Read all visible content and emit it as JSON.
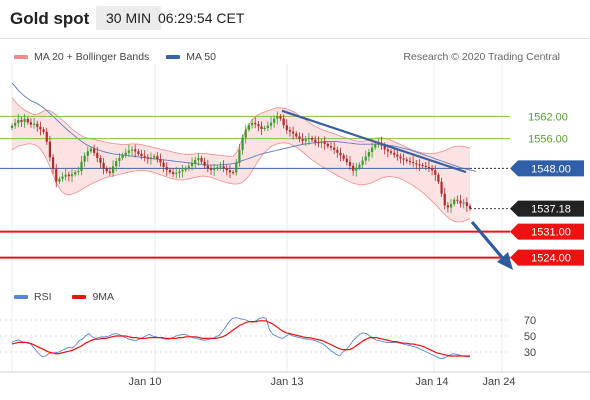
{
  "header": {
    "instrument": "Gold spot",
    "timeframe": "30 MIN",
    "time": "06:29:54 CET"
  },
  "legend": {
    "bollinger": "MA 20 + Bollinger Bands",
    "ma50": "MA 50",
    "copyright": "Research © 2020 Trading Central"
  },
  "rsi_legend": {
    "rsi": "RSI",
    "ma9": "9MA"
  },
  "colors": {
    "bollinger": "#f28c8c",
    "ma50": "#3a62a8",
    "support_red": "#ee1111",
    "green_level": "#7dc242",
    "current_price": "#222222",
    "rsi": "#5a86d6",
    "ma9": "#ee1111"
  },
  "chart_data": [
    {
      "type": "candlestick",
      "title": "Gold spot",
      "x_ticks": [
        "Jan 10",
        "Jan 13",
        "Jan 14",
        "Jan 24"
      ],
      "y_range": [
        1518,
        1575
      ],
      "levels": [
        {
          "value": 1562.0,
          "label": "1562.00",
          "color": "#7dc242"
        },
        {
          "value": 1556.0,
          "label": "1556.00",
          "color": "#7dc242"
        },
        {
          "value": 1548.0,
          "label": "1548.00",
          "color": "#3a62a8"
        },
        {
          "value": 1537.18,
          "label": "1537.18",
          "color": "#222222"
        },
        {
          "value": 1531.0,
          "label": "1531.00",
          "color": "#ee1111"
        },
        {
          "value": 1524.0,
          "label": "1524.00",
          "color": "#ee1111"
        }
      ],
      "close_series": [
        1559.5,
        1560.2,
        1561.0,
        1560.5,
        1561.3,
        1560.4,
        1559.8,
        1560.0,
        1559.2,
        1558.5,
        1557.8,
        1555.2,
        1551.0,
        1547.8,
        1544.5,
        1545.2,
        1545.8,
        1546.3,
        1545.9,
        1546.4,
        1547.0,
        1547.3,
        1549.8,
        1551.4,
        1552.6,
        1553.3,
        1552.2,
        1550.8,
        1549.5,
        1548.0,
        1547.2,
        1546.8,
        1548.6,
        1550.0,
        1550.8,
        1551.6,
        1552.2,
        1552.8,
        1553.1,
        1552.6,
        1551.9,
        1551.3,
        1551.0,
        1550.6,
        1550.9,
        1551.3,
        1550.4,
        1549.6,
        1548.4,
        1547.6,
        1547.0,
        1546.5,
        1546.8,
        1547.2,
        1547.6,
        1548.1,
        1548.6,
        1549.4,
        1550.3,
        1550.8,
        1549.8,
        1548.7,
        1548.1,
        1547.6,
        1547.9,
        1548.3,
        1548.6,
        1548.1,
        1547.5,
        1547.0,
        1546.9,
        1549.5,
        1553.0,
        1556.3,
        1558.4,
        1559.6,
        1560.2,
        1559.9,
        1559.3,
        1558.6,
        1558.9,
        1559.5,
        1560.3,
        1561.4,
        1562.0,
        1561.4,
        1559.6,
        1558.3,
        1557.9,
        1557.4,
        1556.6,
        1555.9,
        1555.4,
        1555.9,
        1556.2,
        1555.7,
        1555.0,
        1554.8,
        1555.2,
        1554.6,
        1554.0,
        1553.6,
        1553.0,
        1552.2,
        1551.5,
        1550.6,
        1549.7,
        1548.7,
        1547.4,
        1548.2,
        1549.0,
        1550.1,
        1551.2,
        1552.4,
        1553.6,
        1554.4,
        1554.9,
        1554.1,
        1553.1,
        1552.6,
        1552.2,
        1551.7,
        1551.2,
        1550.7,
        1550.4,
        1550.0,
        1549.7,
        1549.4,
        1549.1,
        1548.9,
        1548.7,
        1548.4,
        1548.1,
        1547.5,
        1546.3,
        1544.4,
        1541.2,
        1538.1,
        1537.5,
        1538.4,
        1539.6,
        1539.3,
        1538.6,
        1538.9,
        1537.9,
        1537.18
      ],
      "bollinger_upper": [
        1567,
        1566,
        1565,
        1564.3,
        1563.7,
        1563.2,
        1562.8,
        1562.5,
        1562.6,
        1563.0,
        1563.4,
        1563.7,
        1563.5,
        1563.0,
        1562.4,
        1561.8,
        1561.0,
        1560.2,
        1559.4,
        1558.6,
        1557.9,
        1557.3,
        1556.8,
        1556.4,
        1556.1,
        1555.9,
        1555.8,
        1555.6,
        1555.4,
        1555.2,
        1555.0,
        1554.8,
        1554.7,
        1554.6,
        1554.5,
        1554.4,
        1554.4,
        1554.5,
        1554.6,
        1554.6,
        1554.5,
        1554.4,
        1554.2,
        1554.0,
        1553.8,
        1553.6,
        1553.4,
        1553.2,
        1553.0,
        1552.8,
        1552.6,
        1552.4,
        1552.2,
        1552.0,
        1551.9,
        1551.8,
        1551.8,
        1551.8,
        1551.9,
        1552.0,
        1552.0,
        1552.0,
        1551.9,
        1551.8,
        1551.7,
        1551.6,
        1551.5,
        1551.4,
        1551.3,
        1551.2,
        1551.3,
        1552.2,
        1554.0,
        1556.2,
        1558.2,
        1559.8,
        1561.0,
        1561.9,
        1562.5,
        1562.9,
        1563.2,
        1563.5,
        1563.8,
        1564.1,
        1564.3,
        1564.3,
        1564.2,
        1564.0,
        1563.7,
        1563.3,
        1562.8,
        1562.2,
        1561.6,
        1561.0,
        1560.4,
        1559.8,
        1559.3,
        1558.9,
        1558.5,
        1558.2,
        1557.9,
        1557.6,
        1557.3,
        1557.0,
        1556.7,
        1556.4,
        1556.1,
        1555.8,
        1555.6,
        1555.4,
        1555.3,
        1555.3,
        1555.4,
        1555.6,
        1555.9,
        1556.1,
        1556.2,
        1556.2,
        1556.1,
        1555.9,
        1555.6,
        1555.2,
        1554.8,
        1554.4,
        1554.0,
        1553.6,
        1553.2,
        1552.9,
        1552.6,
        1552.4,
        1552.2,
        1552.1,
        1552.0,
        1552.0,
        1552.1,
        1552.3,
        1552.5,
        1552.8,
        1553.2,
        1553.6,
        1553.9,
        1554.0,
        1554.0,
        1553.9,
        1553.7,
        1553.4
      ],
      "bollinger_lower": [
        1553,
        1553.5,
        1554,
        1554.2,
        1554.4,
        1554.6,
        1554.6,
        1554.4,
        1554.0,
        1553.2,
        1552.0,
        1550.4,
        1548.4,
        1546.2,
        1544.2,
        1542.6,
        1541.6,
        1541.0,
        1540.9,
        1541.1,
        1541.4,
        1541.8,
        1542.3,
        1542.8,
        1543.3,
        1543.8,
        1544.2,
        1544.6,
        1545.0,
        1545.3,
        1545.6,
        1545.8,
        1546.0,
        1546.2,
        1546.4,
        1546.6,
        1546.8,
        1547.0,
        1547.2,
        1547.3,
        1547.4,
        1547.5,
        1547.4,
        1547.3,
        1547.1,
        1546.9,
        1546.6,
        1546.3,
        1546.0,
        1545.7,
        1545.4,
        1545.2,
        1545.0,
        1544.9,
        1544.9,
        1545.0,
        1545.2,
        1545.4,
        1545.6,
        1545.8,
        1545.9,
        1545.9,
        1545.8,
        1545.6,
        1545.3,
        1545.0,
        1544.7,
        1544.4,
        1544.2,
        1544.0,
        1543.8,
        1543.8,
        1543.9,
        1544.3,
        1545.0,
        1546.0,
        1547.3,
        1548.7,
        1550.1,
        1551.3,
        1552.3,
        1553.1,
        1553.8,
        1554.3,
        1554.6,
        1554.8,
        1554.9,
        1554.8,
        1554.6,
        1554.2,
        1553.7,
        1553.1,
        1552.4,
        1551.7,
        1551.0,
        1550.3,
        1549.7,
        1549.1,
        1548.6,
        1548.1,
        1547.6,
        1547.1,
        1546.6,
        1546.1,
        1545.6,
        1545.2,
        1544.8,
        1544.4,
        1544.0,
        1543.8,
        1543.6,
        1543.6,
        1543.7,
        1543.9,
        1544.2,
        1544.6,
        1545.0,
        1545.4,
        1545.6,
        1545.8,
        1545.8,
        1545.7,
        1545.5,
        1545.2,
        1544.8,
        1544.4,
        1543.9,
        1543.4,
        1542.8,
        1542.2,
        1541.5,
        1540.8,
        1540.0,
        1539.2,
        1538.3,
        1537.4,
        1536.5,
        1535.6,
        1534.8,
        1534.2,
        1533.8,
        1533.6,
        1533.6,
        1533.8,
        1534.1,
        1534.5
      ],
      "ma50_series": [
        1571,
        1570,
        1569,
        1568.2,
        1567.4,
        1566.8,
        1566.2,
        1565.8,
        1565.4,
        1564.9,
        1564.3,
        1563.6,
        1562.8,
        1562.0,
        1561.2,
        1560.4,
        1559.6,
        1558.8,
        1558.0,
        1557.3,
        1556.6,
        1555.9,
        1555.3,
        1554.7,
        1554.2,
        1553.8,
        1553.4,
        1553.1,
        1552.8,
        1552.5,
        1552.3,
        1552.1,
        1551.9,
        1551.8,
        1551.7,
        1551.6,
        1551.5,
        1551.4,
        1551.3,
        1551.2,
        1551.1,
        1551.0,
        1550.9,
        1550.8,
        1550.7,
        1550.6,
        1550.5,
        1550.4,
        1550.3,
        1550.2,
        1550.1,
        1550.0,
        1549.9,
        1549.8,
        1549.7,
        1549.6,
        1549.5,
        1549.4,
        1549.3,
        1549.2,
        1549.1,
        1549.0,
        1548.9,
        1548.9,
        1548.9,
        1548.9,
        1549.0,
        1549.0,
        1549.1,
        1549.2,
        1549.3,
        1549.5,
        1549.8,
        1550.1,
        1550.4,
        1550.7,
        1551.0,
        1551.3,
        1551.6,
        1551.9,
        1552.1,
        1552.3,
        1552.5,
        1552.7,
        1552.9,
        1553.1,
        1553.3,
        1553.5,
        1553.7,
        1553.9,
        1554.1,
        1554.3,
        1554.5,
        1554.6,
        1554.7,
        1554.8,
        1554.9,
        1555.0,
        1555.1,
        1555.2,
        1555.2,
        1555.2,
        1555.2,
        1555.2,
        1555.1,
        1555.0,
        1554.9,
        1554.8,
        1554.7,
        1554.6,
        1554.5,
        1554.5,
        1554.5,
        1554.5,
        1554.5,
        1554.5,
        1554.5,
        1554.4,
        1554.3,
        1554.2,
        1554.1,
        1554.0,
        1553.8,
        1553.6,
        1553.4,
        1553.2,
        1553.0,
        1552.7,
        1552.4,
        1552.1,
        1551.8,
        1551.5,
        1551.2,
        1550.9,
        1550.6,
        1550.3,
        1550.0,
        1549.7,
        1549.4,
        1549.1,
        1548.8,
        1548.5,
        1548.2,
        1548.0,
        1547.8,
        1547.6,
        1547.4,
        1547.2
      ],
      "trendline": {
        "from": 1563.5,
        "to": 1547.0
      }
    },
    {
      "type": "line",
      "title": "RSI",
      "y_ticks": [
        30,
        50,
        70
      ],
      "y_range": [
        10,
        85
      ],
      "series": [
        {
          "name": "RSI",
          "values": [
            42,
            44,
            45,
            43,
            42,
            42,
            38,
            33,
            28,
            24,
            25,
            28,
            29,
            29,
            30,
            32,
            34,
            36,
            35,
            38,
            44,
            46,
            50,
            53,
            49,
            47,
            48,
            49,
            49,
            50,
            52,
            53,
            52,
            50,
            48,
            46,
            45,
            44,
            46,
            48,
            50,
            52,
            50,
            49,
            48,
            47,
            46,
            46,
            48,
            50,
            51,
            52,
            52,
            50,
            48,
            47,
            46,
            45,
            45,
            46,
            47,
            49,
            51,
            56,
            62,
            68,
            72,
            73,
            72,
            71,
            70,
            68,
            67,
            69,
            72,
            73,
            72,
            58,
            52,
            50,
            48,
            47,
            50,
            52,
            50,
            49,
            48,
            47,
            46,
            46,
            45,
            44,
            42,
            40,
            37,
            33,
            30,
            27,
            25,
            30,
            33,
            38,
            44,
            48,
            52,
            54,
            53,
            50,
            47,
            45,
            44,
            43,
            42,
            42,
            42,
            42,
            41,
            40,
            39,
            38,
            37,
            36,
            34,
            32,
            30,
            28,
            26,
            24,
            22,
            22,
            24,
            26,
            28,
            27,
            26,
            25,
            24,
            24
          ]
        },
        {
          "name": "9MA",
          "values": [
            40,
            41,
            42,
            42,
            42,
            41,
            40,
            38,
            36,
            34,
            32,
            30,
            29,
            28,
            28,
            29,
            30,
            31,
            32,
            34,
            36,
            38,
            41,
            43,
            45,
            46,
            46,
            47,
            47,
            48,
            49,
            50,
            50,
            50,
            50,
            49,
            48,
            48,
            47,
            47,
            47,
            48,
            48,
            48,
            48,
            48,
            47,
            47,
            47,
            47,
            48,
            48,
            49,
            49,
            49,
            49,
            48,
            47,
            47,
            47,
            47,
            47,
            48,
            49,
            51,
            54,
            57,
            60,
            63,
            65,
            67,
            68,
            68,
            68,
            69,
            69,
            69,
            67,
            65,
            62,
            59,
            56,
            54,
            53,
            52,
            51,
            50,
            49,
            48,
            48,
            47,
            46,
            45,
            44,
            42,
            40,
            38,
            36,
            34,
            33,
            33,
            33,
            35,
            38,
            41,
            44,
            46,
            48,
            48,
            48,
            47,
            46,
            45,
            44,
            43,
            43,
            42,
            41,
            41,
            40,
            40,
            39,
            38,
            37,
            35,
            33,
            31,
            29,
            28,
            27,
            26,
            25,
            25,
            25,
            25,
            25,
            25,
            25
          ]
        }
      ],
      "x_ticks": [
        "Jan 10",
        "Jan 13",
        "Jan 14",
        "Jan 24"
      ]
    }
  ]
}
